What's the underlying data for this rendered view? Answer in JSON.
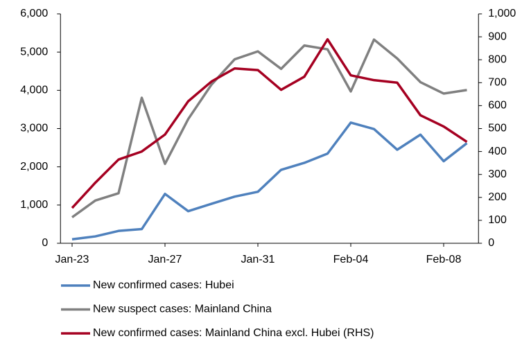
{
  "chart_data": {
    "type": "line",
    "categories": [
      "Jan-23",
      null,
      null,
      null,
      "Jan-27",
      null,
      null,
      null,
      "Jan-31",
      null,
      null,
      null,
      "Feb-04",
      null,
      null,
      null,
      "Feb-08",
      null
    ],
    "series": [
      {
        "name": "New confirmed cases: Hubei",
        "color": "#4f81bd",
        "values": [
          105,
          180,
          323,
          371,
          1291,
          840,
          1032,
          1220,
          1347,
          1921,
          2103,
          2345,
          3156,
          2987,
          2447,
          2841,
          2147,
          2618
        ]
      },
      {
        "name": "New suspect cases: Mainland China",
        "color": "#808080",
        "values": [
          680,
          1118,
          1309,
          3806,
          2077,
          3248,
          4148,
          4812,
          5019,
          4562,
          5173,
          5072,
          3971,
          5328,
          4833,
          4214,
          3916,
          4008
        ]
      },
      {
        "name": "New confirmed cases: Mainland China excl. Hubei (RHS)",
        "color": "#a50021",
        "axis": "y2",
        "values": [
          154,
          264,
          365,
          400,
          474,
          619,
          705,
          762,
          755,
          669,
          726,
          889,
          732,
          711,
          700,
          558,
          509,
          442
        ]
      }
    ],
    "ylim": [
      0,
      6000
    ],
    "yticks": [
      0,
      {
        "value": 1000,
        "label": "1,000"
      },
      {
        "value": 2000,
        "label": "2,000"
      },
      {
        "value": 3000,
        "label": "3,000"
      },
      {
        "value": 4000,
        "label": "4,000"
      },
      {
        "value": 5000,
        "label": "5,000"
      },
      {
        "value": 6000,
        "label": "6,000"
      }
    ],
    "y2lim": [
      0,
      1000
    ],
    "y2ticks": [
      0,
      100,
      200,
      300,
      400,
      500,
      600,
      700,
      800,
      900,
      {
        "value": 1000,
        "label": "1,000"
      }
    ],
    "legend": "bottom"
  }
}
